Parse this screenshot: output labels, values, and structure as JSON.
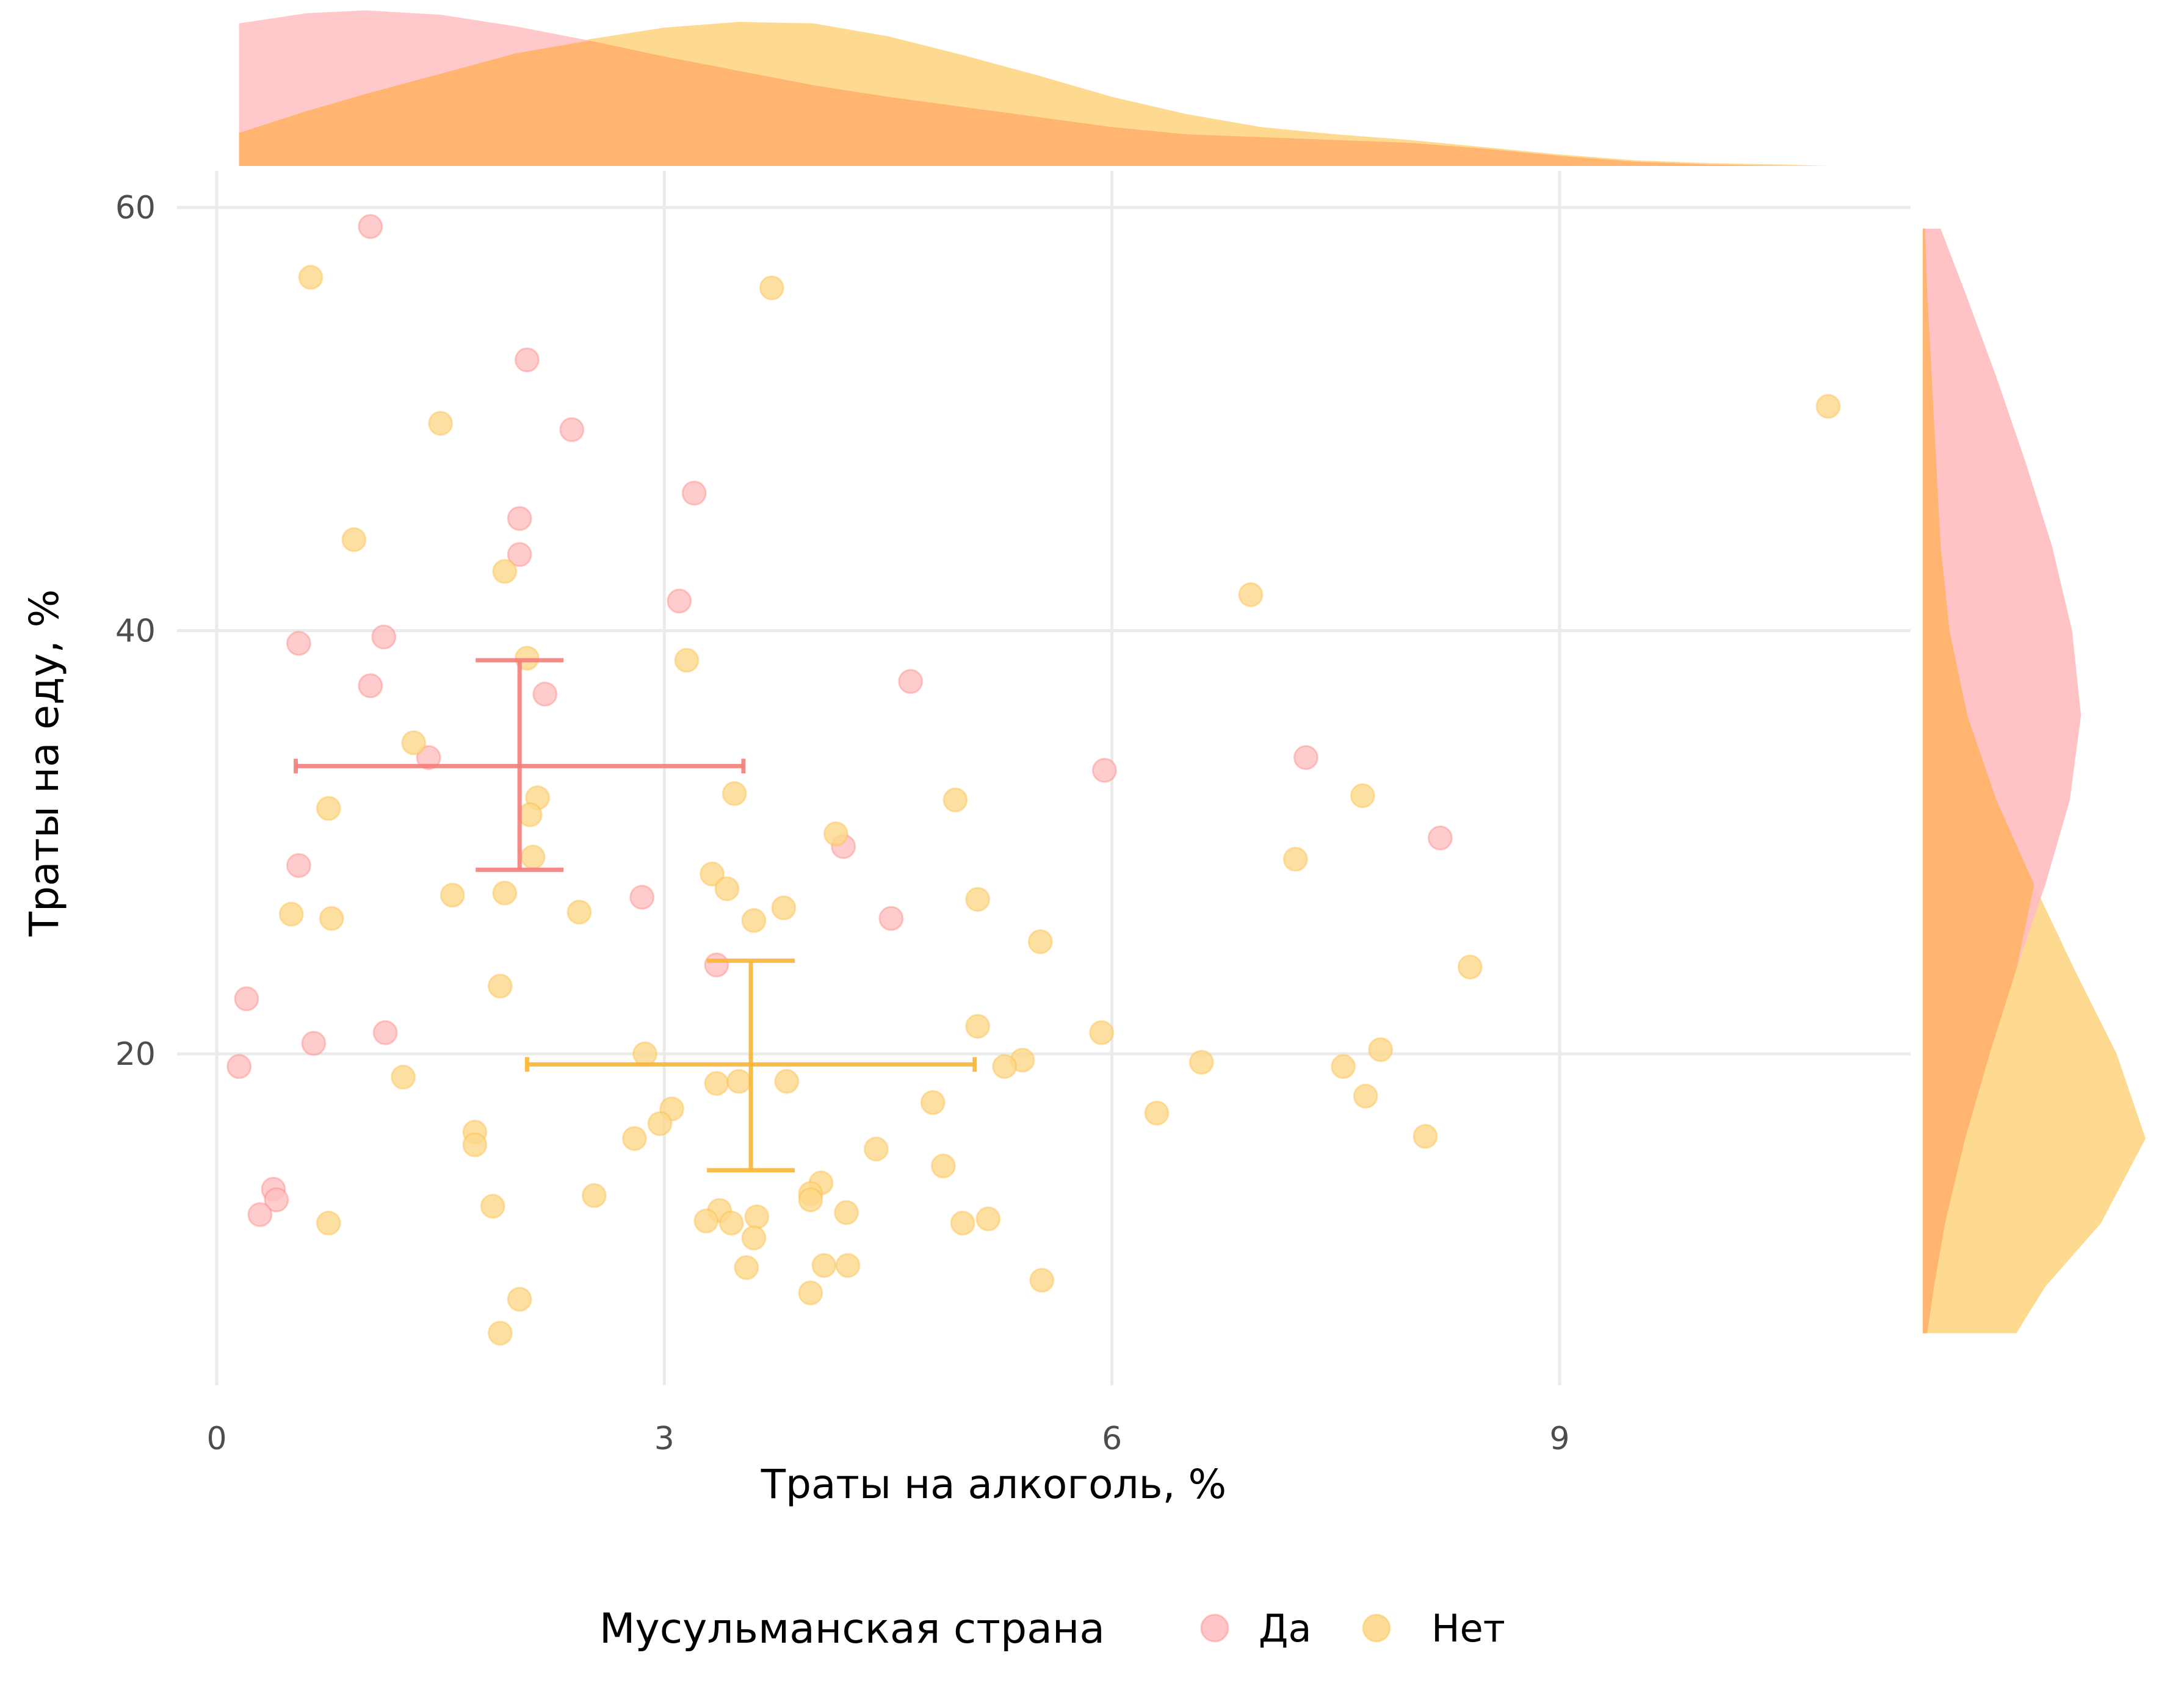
{
  "chart_data": {
    "type": "scatter",
    "xlabel": "Траты на алкоголь, %",
    "ylabel": "Траты на еду, %",
    "xlim": [
      -0.2,
      11.3
    ],
    "ylim": [
      5.5,
      61.5
    ],
    "x_ticks": [
      0,
      3,
      6,
      9
    ],
    "y_ticks": [
      20,
      40,
      60
    ],
    "x_tick_labels": [
      "0",
      "3",
      "6",
      "9"
    ],
    "y_tick_labels": [
      "20",
      "40",
      "60"
    ],
    "grid": true,
    "legend": {
      "title": "Мусульманская страна",
      "position": "bottom",
      "entries": [
        "Да",
        "Нет"
      ]
    },
    "series": [
      {
        "name": "Да",
        "color": "#f8766d",
        "fill": "#ffbfc2",
        "points": [
          [
            1.03,
            59.1
          ],
          [
            2.08,
            52.8
          ],
          [
            2.38,
            49.5
          ],
          [
            3.2,
            46.5
          ],
          [
            2.03,
            45.3
          ],
          [
            2.03,
            43.6
          ],
          [
            3.1,
            41.4
          ],
          [
            1.12,
            39.7
          ],
          [
            0.55,
            39.4
          ],
          [
            1.03,
            37.4
          ],
          [
            4.65,
            37.6
          ],
          [
            2.2,
            37.0
          ],
          [
            1.42,
            34.0
          ],
          [
            7.3,
            34.0
          ],
          [
            5.95,
            33.4
          ],
          [
            8.2,
            30.2
          ],
          [
            4.2,
            29.8
          ],
          [
            0.55,
            28.9
          ],
          [
            2.85,
            27.4
          ],
          [
            4.52,
            26.4
          ],
          [
            3.35,
            24.2
          ],
          [
            0.2,
            22.6
          ],
          [
            1.13,
            21.0
          ],
          [
            0.65,
            20.5
          ],
          [
            0.15,
            19.4
          ],
          [
            0.38,
            13.6
          ],
          [
            0.4,
            13.1
          ],
          [
            0.29,
            12.4
          ]
        ],
        "summary": {
          "x_mean": 2.03,
          "x_low": 0.53,
          "x_high": 3.53,
          "y_mean": 33.6,
          "y_low": 28.7,
          "y_high": 38.6
        }
      },
      {
        "name": "Нет",
        "color": "#f9b535",
        "fill": "#fdd889",
        "points": [
          [
            0.63,
            56.7
          ],
          [
            3.72,
            56.2
          ],
          [
            1.5,
            49.8
          ],
          [
            10.8,
            50.6
          ],
          [
            0.92,
            44.3
          ],
          [
            1.93,
            42.8
          ],
          [
            6.93,
            41.7
          ],
          [
            2.08,
            38.7
          ],
          [
            3.15,
            38.6
          ],
          [
            1.32,
            34.7
          ],
          [
            0.75,
            31.6
          ],
          [
            2.15,
            32.1
          ],
          [
            3.47,
            32.3
          ],
          [
            4.95,
            32.0
          ],
          [
            7.68,
            32.2
          ],
          [
            2.1,
            31.3
          ],
          [
            4.15,
            30.4
          ],
          [
            7.23,
            29.2
          ],
          [
            2.12,
            29.3
          ],
          [
            3.32,
            28.5
          ],
          [
            3.42,
            27.8
          ],
          [
            1.58,
            27.5
          ],
          [
            1.93,
            27.6
          ],
          [
            3.8,
            26.9
          ],
          [
            5.1,
            27.3
          ],
          [
            0.5,
            26.6
          ],
          [
            0.77,
            26.4
          ],
          [
            2.43,
            26.7
          ],
          [
            3.6,
            26.3
          ],
          [
            5.52,
            25.3
          ],
          [
            8.4,
            24.1
          ],
          [
            1.9,
            23.2
          ],
          [
            5.1,
            21.3
          ],
          [
            5.93,
            21.0
          ],
          [
            2.87,
            20.0
          ],
          [
            7.8,
            20.2
          ],
          [
            5.4,
            19.7
          ],
          [
            6.6,
            19.6
          ],
          [
            5.28,
            19.4
          ],
          [
            7.55,
            19.4
          ],
          [
            1.25,
            18.9
          ],
          [
            3.35,
            18.6
          ],
          [
            3.5,
            18.7
          ],
          [
            3.82,
            18.7
          ],
          [
            7.7,
            18.0
          ],
          [
            4.8,
            17.7
          ],
          [
            3.05,
            17.4
          ],
          [
            6.3,
            17.2
          ],
          [
            2.97,
            16.7
          ],
          [
            1.73,
            16.3
          ],
          [
            8.1,
            16.1
          ],
          [
            1.73,
            15.7
          ],
          [
            2.8,
            16.0
          ],
          [
            4.42,
            15.5
          ],
          [
            4.87,
            14.7
          ],
          [
            4.05,
            13.9
          ],
          [
            2.53,
            13.3
          ],
          [
            3.98,
            13.4
          ],
          [
            3.98,
            13.1
          ],
          [
            1.85,
            12.8
          ],
          [
            4.22,
            12.5
          ],
          [
            3.37,
            12.6
          ],
          [
            3.28,
            12.1
          ],
          [
            3.62,
            12.3
          ],
          [
            3.45,
            12.0
          ],
          [
            0.75,
            12.0
          ],
          [
            5.0,
            12.0
          ],
          [
            5.17,
            12.2
          ],
          [
            3.6,
            11.3
          ],
          [
            4.07,
            10.0
          ],
          [
            4.23,
            10.0
          ],
          [
            3.55,
            9.9
          ],
          [
            5.53,
            9.3
          ],
          [
            3.98,
            8.7
          ],
          [
            2.03,
            8.4
          ],
          [
            1.9,
            6.8
          ]
        ],
        "summary": {
          "x_mean": 3.58,
          "x_low": 2.08,
          "x_high": 5.08,
          "y_mean": 19.5,
          "y_low": 14.5,
          "y_high": 24.4
        }
      }
    ],
    "marginal_x_density": {
      "x": [
        0.15,
        0.6,
        1.0,
        1.5,
        2.0,
        2.5,
        3.0,
        3.5,
        4.0,
        4.5,
        5.0,
        5.5,
        6.0,
        6.5,
        7.0,
        7.5,
        8.0,
        8.5,
        9.0,
        9.5,
        10.0,
        10.5,
        10.8
      ],
      "Да": [
        0.99,
        1.06,
        1.08,
        1.05,
        0.97,
        0.87,
        0.76,
        0.66,
        0.56,
        0.48,
        0.41,
        0.34,
        0.27,
        0.22,
        0.2,
        0.18,
        0.16,
        0.12,
        0.07,
        0.03,
        0.01,
        0.0,
        0.0
      ],
      "Нет": [
        0.23,
        0.38,
        0.5,
        0.64,
        0.78,
        0.88,
        0.96,
        1.0,
        0.99,
        0.9,
        0.77,
        0.63,
        0.48,
        0.36,
        0.27,
        0.22,
        0.18,
        0.13,
        0.08,
        0.04,
        0.02,
        0.01,
        0.0
      ]
    },
    "marginal_y_density": {
      "y": [
        59.0,
        56.0,
        52.0,
        48.0,
        44.0,
        40.0,
        36.0,
        32.0,
        28.0,
        24.0,
        20.0,
        16.0,
        12.0,
        9.0,
        6.8
      ],
      "Да": [
        0.08,
        0.19,
        0.33,
        0.46,
        0.58,
        0.67,
        0.71,
        0.66,
        0.55,
        0.42,
        0.3,
        0.19,
        0.1,
        0.05,
        0.02
      ],
      "Нет": [
        0.01,
        0.02,
        0.04,
        0.06,
        0.08,
        0.12,
        0.2,
        0.33,
        0.5,
        0.68,
        0.87,
        1.0,
        0.8,
        0.55,
        0.42
      ]
    }
  }
}
